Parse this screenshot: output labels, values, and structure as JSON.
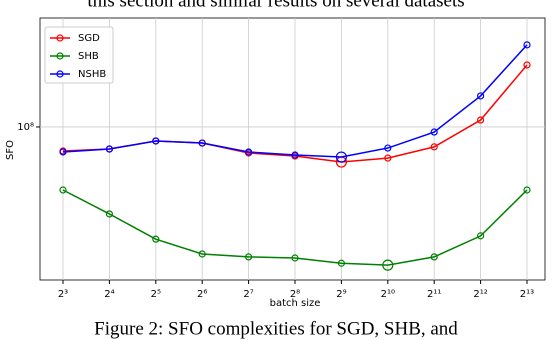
{
  "header_text": "this section and similar results on several datasets",
  "chart_data": {
    "type": "line",
    "x_label": "batch size",
    "y_label": "SFO",
    "log_scale_y": true,
    "grid": true,
    "legend": "upper left",
    "categories": [
      "2³",
      "2⁴",
      "2⁵",
      "2⁶",
      "2⁷",
      "2⁸",
      "2⁹",
      "2¹⁰",
      "2¹¹",
      "2¹²",
      "2¹³"
    ],
    "series": [
      {
        "name": "SGD",
        "color": "#ff0000",
        "values": [
          87000000,
          88000000,
          92200000,
          91100000,
          86000000,
          84500000,
          81600000,
          83500000,
          89100000,
          104100000,
          143200000
        ]
      },
      {
        "name": "SHB",
        "color": "#008000",
        "values": [
          69400000,
          60400000,
          52200000,
          47900000,
          47100000,
          46800000,
          45400000,
          44900000,
          47100000,
          53200000,
          69400000
        ]
      },
      {
        "name": "NSHB",
        "color": "#0000ff",
        "values": [
          86500000,
          88000000,
          92200000,
          91100000,
          86500000,
          85000000,
          84000000,
          88500000,
          97100000,
          119700000,
          160900000
        ]
      }
    ],
    "ylim": [
      41200000,
      188000000
    ],
    "yticks": [
      {
        "value": 100000000,
        "label": "10⁸"
      }
    ]
  },
  "caption": "Figure 2: SFO complexities for SGD, SHB, and"
}
